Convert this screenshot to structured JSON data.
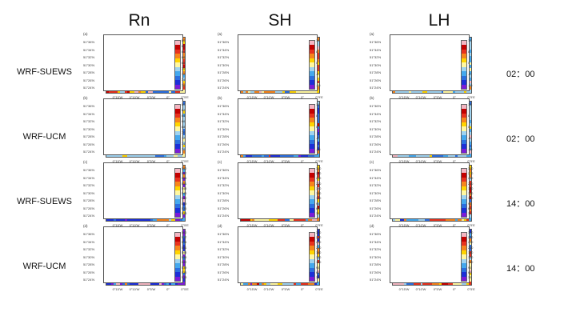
{
  "columns": [
    {
      "id": "rn",
      "title": "Rn"
    },
    {
      "id": "sh",
      "title": "SH"
    },
    {
      "id": "lh",
      "title": "LH"
    }
  ],
  "rows": [
    {
      "label": "WRF-SUEWS",
      "time": "02：00"
    },
    {
      "label": "WRF-UCM",
      "time": "02：00"
    },
    {
      "label": "WRF-SUEWS",
      "time": "14：00"
    },
    {
      "label": "WRF-UCM",
      "time": "14：00"
    }
  ],
  "y_ticks": [
    "51°36'N",
    "51°34'N",
    "51°32'N",
    "51°30'N",
    "51°28'N",
    "51°26'N",
    "51°24'N"
  ],
  "x_ticks": [
    "0°15'W",
    "0°10'W",
    "0°5'W",
    "0°",
    "0°5'E"
  ],
  "chart_data": [
    {
      "type": "heatmap",
      "column": "Rn",
      "row": "WRF-SUEWS",
      "time": "02：00",
      "panel_letter": "(a)",
      "palette": "diverging",
      "tone": "warm",
      "colorbar_labels": [
        "60",
        "62",
        "64",
        "66",
        "68",
        "70",
        "72",
        "74",
        "76"
      ]
    },
    {
      "type": "heatmap",
      "column": "SH",
      "row": "WRF-SUEWS",
      "time": "02：00",
      "panel_letter": "(a)",
      "palette": "diverging",
      "tone": "warm",
      "colorbar_labels": [
        "16",
        "8",
        "0",
        "-8",
        "-16"
      ]
    },
    {
      "type": "heatmap",
      "column": "LH",
      "row": "WRF-SUEWS",
      "time": "02：00",
      "panel_letter": "(a)",
      "palette": "diverging",
      "tone": "lightblue",
      "colorbar_labels": [
        "16",
        "8",
        "0",
        "-8",
        "-16"
      ]
    },
    {
      "type": "heatmap",
      "column": "Rn",
      "row": "WRF-UCM",
      "time": "02：00",
      "panel_letter": "(b)",
      "palette": "diverging",
      "tone": "lightblue",
      "colorbar_labels": [
        "60",
        "62",
        "64",
        "66",
        "68",
        "70",
        "72",
        "74",
        "76"
      ]
    },
    {
      "type": "heatmap",
      "column": "SH",
      "row": "WRF-UCM",
      "time": "02：00",
      "panel_letter": "(b)",
      "palette": "diverging",
      "tone": "deepblue",
      "colorbar_labels": [
        "16",
        "8",
        "0",
        "-8",
        "-16"
      ]
    },
    {
      "type": "heatmap",
      "column": "LH",
      "row": "WRF-UCM",
      "time": "02：00",
      "panel_letter": "(b)",
      "palette": "diverging",
      "tone": "lightblue",
      "colorbar_labels": [
        "16",
        "8",
        "0",
        "-8",
        "-16"
      ]
    },
    {
      "type": "heatmap",
      "column": "Rn",
      "row": "WRF-SUEWS",
      "time": "14：00",
      "panel_letter": "(c)",
      "palette": "diverging",
      "tone": "purple",
      "colorbar_labels": [
        "560",
        "557",
        "554",
        "551",
        "548",
        "545",
        "542",
        "539",
        "536",
        "533"
      ]
    },
    {
      "type": "heatmap",
      "column": "SH",
      "row": "WRF-SUEWS",
      "time": "14：00",
      "panel_letter": "(c)",
      "palette": "diverging",
      "tone": "warm",
      "colorbar_labels": [
        "300",
        "270",
        "240",
        "210",
        "180",
        "150",
        "120",
        "90",
        "60",
        "30"
      ]
    },
    {
      "type": "heatmap",
      "column": "LH",
      "row": "WRF-SUEWS",
      "time": "14：00",
      "panel_letter": "(c)",
      "palette": "diverging",
      "tone": "warm",
      "colorbar_labels": [
        "300",
        "270",
        "240",
        "210",
        "180",
        "150",
        "120",
        "90",
        "60",
        "30"
      ]
    },
    {
      "type": "heatmap",
      "column": "Rn",
      "row": "WRF-UCM",
      "time": "14：00",
      "panel_letter": "(d)",
      "palette": "diverging",
      "tone": "purple",
      "colorbar_labels": [
        "560",
        "557",
        "554",
        "551",
        "548",
        "545",
        "542",
        "539",
        "536",
        "533"
      ]
    },
    {
      "type": "heatmap",
      "column": "SH",
      "row": "WRF-UCM",
      "time": "14：00",
      "panel_letter": "(d)",
      "palette": "diverging",
      "tone": "mixed",
      "colorbar_labels": [
        "300",
        "270",
        "240",
        "210",
        "180",
        "150",
        "120",
        "90",
        "60",
        "30"
      ]
    },
    {
      "type": "heatmap",
      "column": "LH",
      "row": "WRF-UCM",
      "time": "14：00",
      "panel_letter": "(d)",
      "palette": "diverging",
      "tone": "mixed",
      "colorbar_labels": [
        "300",
        "270",
        "240",
        "210",
        "180",
        "150",
        "120",
        "90",
        "60",
        "30"
      ]
    }
  ],
  "colormap": [
    "#f4b6c2",
    "#c40000",
    "#e8321e",
    "#f7851c",
    "#ffd400",
    "#fff7a0",
    "#9fd3f0",
    "#44a8ee",
    "#2b6fe0",
    "#1c2fd8",
    "#7b1bd8"
  ]
}
